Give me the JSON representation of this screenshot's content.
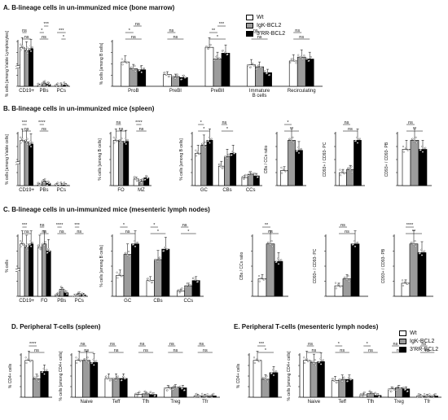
{
  "sections": {
    "A": "A. B-lineage cells in un-immunized mice (bone marrow)",
    "B": "B. B-lineage cells in un-immunized mice (spleen)",
    "C": "C. B-lineage cells in un-immunized mice (mesenteric lymph nodes)",
    "D": "D. Peripheral T-cells (spleen)",
    "E": "E. Peripheral T-cells (mesenteric lymph nodes)"
  },
  "legend_top": [
    "Wt",
    "IgK-BCL2",
    "3'RR-BCL2"
  ],
  "legend_bottom": [
    "Wt",
    "IgK-BCL2",
    "3'RR-BCL2"
  ],
  "colors": {
    "wt": "#ffffff",
    "igk": "#9c9c9c",
    "rr": "#000000",
    "stroke": "#000000"
  },
  "chart_data": [
    {
      "id": "A1",
      "type": "bar",
      "ylabel": "% cells [among Viable Lymphocytes]",
      "categories": [
        "CD19+",
        "PBs",
        "PCs"
      ],
      "broken_axis": true,
      "groups": [
        {
          "wt": 60,
          "igk": 55,
          "rr": 58
        },
        {
          "wt": 1,
          "igk": 5,
          "rr": 3
        },
        {
          "wt": 0.5,
          "igk": 1,
          "rr": 2
        }
      ],
      "annotations": [
        {
          "text": "ns",
          "from": 0,
          "to": 2,
          "over": 0,
          "level": 0
        },
        {
          "text": "ns",
          "from": 0,
          "to": 1,
          "over": 0,
          "level": 1
        },
        {
          "text": "ns",
          "from": 0,
          "to": 2,
          "over": 1,
          "level": 0
        },
        {
          "text": "*",
          "from": 0,
          "to": 1,
          "over": 1,
          "level": 1
        },
        {
          "text": "***",
          "from": 1,
          "to": 2,
          "over": 1,
          "level": 2
        },
        {
          "text": "*",
          "from": 1,
          "to": 2,
          "over": 2,
          "level": 0
        },
        {
          "text": "***",
          "from": 0,
          "to": 2,
          "over": 2,
          "level": 1
        }
      ]
    },
    {
      "id": "A2",
      "type": "bar",
      "ylabel": "% cells [among B cells]",
      "categories": [
        "ProB",
        "PreBI",
        "PreBII",
        "Immature B cells",
        "Recirculating"
      ],
      "groups": [
        {
          "wt": 25,
          "igk": 18,
          "rr": 17
        },
        {
          "wt": 12,
          "igk": 10,
          "rr": 9
        },
        {
          "wt": 40,
          "igk": 28,
          "rr": 34
        },
        {
          "wt": 22,
          "igk": 20,
          "rr": 14
        },
        {
          "wt": 26,
          "igk": 30,
          "rr": 28
        }
      ],
      "annotations": [
        {
          "text": "ns",
          "from": 0,
          "to": 2,
          "over": 0,
          "level": 0
        },
        {
          "text": "*",
          "from": 0,
          "to": 1,
          "over": 0,
          "level": 1
        },
        {
          "text": "ns",
          "from": 1,
          "to": 2,
          "over": 0,
          "level": 2
        },
        {
          "text": "ns",
          "from": 0,
          "to": 2,
          "over": 1,
          "level": 0
        },
        {
          "text": "ns",
          "from": 0,
          "to": 1,
          "over": 1,
          "level": 1
        },
        {
          "text": "*",
          "from": 0,
          "to": 2,
          "over": 2,
          "level": 0
        },
        {
          "text": "**",
          "from": 0,
          "to": 1,
          "over": 2,
          "level": 1
        },
        {
          "text": "***",
          "from": 1,
          "to": 2,
          "over": 2,
          "level": 2
        },
        {
          "text": "ns",
          "from": 0,
          "to": 2,
          "over": 3,
          "level": 0
        },
        {
          "text": "ns",
          "from": 0,
          "to": 1,
          "over": 3,
          "level": 1
        },
        {
          "text": "ns",
          "from": 0,
          "to": 2,
          "over": 4,
          "level": 0
        },
        {
          "text": "ns",
          "from": 0,
          "to": 1,
          "over": 4,
          "level": 1
        }
      ]
    },
    {
      "id": "B1",
      "type": "bar",
      "ylabel": "% cells [among Viable cells]",
      "categories": [
        "CD19+",
        "PBs",
        "PCs"
      ],
      "broken_axis": true,
      "groups": [
        {
          "wt": 60,
          "igk": 58,
          "rr": 55
        },
        {
          "wt": 1,
          "igk": 6,
          "rr": 3
        },
        {
          "wt": 0.5,
          "igk": 0.8,
          "rr": 0.6
        }
      ],
      "annotations": [
        {
          "text": "ns",
          "from": 0,
          "to": 2,
          "over": 0,
          "level": 0
        },
        {
          "text": "***",
          "from": 0,
          "to": 1,
          "over": 0,
          "level": 1
        },
        {
          "text": "ns",
          "from": 0,
          "to": 2,
          "over": 1,
          "level": 0
        },
        {
          "text": "****",
          "from": 0,
          "to": 1,
          "over": 1,
          "level": 1
        }
      ]
    },
    {
      "id": "B2",
      "type": "bar",
      "ylabel": "% cells [among B cells]",
      "categories": [
        "FO",
        "MZ"
      ],
      "groups": [
        {
          "wt": 82,
          "igk": 80,
          "rr": 80
        },
        {
          "wt": 12,
          "igk": 8,
          "rr": 14
        }
      ],
      "annotations": [
        {
          "text": "ns",
          "from": 0,
          "to": 2,
          "over": 0,
          "level": 0
        },
        {
          "text": "ns",
          "from": 0,
          "to": 1,
          "over": 0,
          "level": 1
        },
        {
          "text": "ns",
          "from": 0,
          "to": 2,
          "over": 1,
          "level": 0
        },
        {
          "text": "****",
          "from": 0,
          "to": 1,
          "over": 1,
          "level": 1
        }
      ]
    },
    {
      "id": "B3",
      "type": "bar",
      "ylabel": "% cells [among B cells]",
      "categories": [
        "GC",
        "CBs",
        "CCs"
      ],
      "groups": [
        {
          "wt": 2,
          "igk": 2.5,
          "rr": 2.8
        },
        {
          "wt": 1.2,
          "igk": 1.8,
          "rr": 2.0
        },
        {
          "wt": 0.5,
          "igk": 0.7,
          "rr": 0.6
        }
      ],
      "annotations": [
        {
          "text": "*",
          "from": 0,
          "to": 2,
          "over": 0,
          "level": 0
        },
        {
          "text": "*",
          "from": 0,
          "to": 1,
          "over": 0,
          "level": 1
        },
        {
          "text": "*",
          "from": 0,
          "to": 2,
          "over": 1,
          "level": 0
        },
        {
          "text": "ns",
          "from": 0,
          "to": 1,
          "over": 1,
          "level": 1
        }
      ]
    },
    {
      "id": "B4",
      "type": "bar",
      "ylabel": "CBs / CCs ratio",
      "categories": [
        ""
      ],
      "groups": [
        {
          "wt": 1.5,
          "igk": 4.5,
          "rr": 3.5
        }
      ],
      "annotations": [
        {
          "text": "**",
          "from": 0,
          "to": 2,
          "over": 0,
          "level": 0
        },
        {
          "text": "*",
          "from": 0,
          "to": 1,
          "over": 0,
          "level": 1
        }
      ]
    },
    {
      "id": "B5",
      "type": "bar",
      "ylabel": "CD93+ / CD93- PC",
      "categories": [
        ""
      ],
      "groups": [
        {
          "wt": 0.4,
          "igk": 0.5,
          "rr": 1.4
        }
      ],
      "annotations": [
        {
          "text": "ns",
          "from": 0,
          "to": 2,
          "over": 0,
          "level": 0
        },
        {
          "text": "ns",
          "from": 0,
          "to": 1,
          "over": 0,
          "level": 1
        }
      ]
    },
    {
      "id": "B6",
      "type": "bar",
      "ylabel": "CD93+ / CD93- PB",
      "categories": [
        ""
      ],
      "groups": [
        {
          "wt": 0.8,
          "igk": 1.0,
          "rr": 0.8
        }
      ],
      "annotations": [
        {
          "text": "**",
          "from": 0,
          "to": 2,
          "over": 0,
          "level": 0
        },
        {
          "text": "ns",
          "from": 0,
          "to": 1,
          "over": 0,
          "level": 1
        }
      ]
    },
    {
      "id": "C1",
      "type": "bar",
      "ylabel": "% cells",
      "categories": [
        "CD19+",
        "FO",
        "PBs",
        "PCs"
      ],
      "broken_axis": true,
      "groups": [
        {
          "wt": 30,
          "igk": 28,
          "rr": 30
        },
        {
          "wt": 28,
          "igk": 30,
          "rr": 26
        },
        {
          "wt": 0.5,
          "igk": 4,
          "rr": 2
        },
        {
          "wt": 0.2,
          "igk": 1.5,
          "rr": 0.8
        }
      ],
      "annotations": [
        {
          "text": "ns",
          "from": 0,
          "to": 2,
          "over": 0,
          "level": 0
        },
        {
          "text": "***",
          "from": 0,
          "to": 1,
          "over": 0,
          "level": 1
        },
        {
          "text": "ns",
          "from": 0,
          "to": 2,
          "over": 1,
          "level": 0
        },
        {
          "text": "ns",
          "from": 0,
          "to": 1,
          "over": 1,
          "level": 1
        },
        {
          "text": "ns",
          "from": 0,
          "to": 2,
          "over": 2,
          "level": 0
        },
        {
          "text": "****",
          "from": 0,
          "to": 1,
          "over": 2,
          "level": 1
        },
        {
          "text": "ns",
          "from": 0,
          "to": 2,
          "over": 3,
          "level": 0
        },
        {
          "text": "***",
          "from": 0,
          "to": 1,
          "over": 3,
          "level": 1
        }
      ]
    },
    {
      "id": "C2",
      "type": "bar",
      "ylabel": "% cells [among B cells]",
      "categories": [
        "GC",
        "CBs",
        "CCs"
      ],
      "groups": [
        {
          "wt": 4,
          "igk": 8,
          "rr": 10
        },
        {
          "wt": 3,
          "igk": 7,
          "rr": 9
        },
        {
          "wt": 1,
          "igk": 2,
          "rr": 3
        }
      ],
      "annotations": [
        {
          "text": "ns",
          "from": 0,
          "to": 2,
          "over": 0,
          "level": 0
        },
        {
          "text": "*",
          "from": 0,
          "to": 1,
          "over": 0,
          "level": 1
        },
        {
          "text": "*",
          "from": 0,
          "to": 2,
          "over": 1,
          "level": 0
        },
        {
          "text": "*",
          "from": 0,
          "to": 1,
          "over": 1,
          "level": 1
        },
        {
          "text": "*",
          "from": 0,
          "to": 2,
          "over": 2,
          "level": 0
        },
        {
          "text": "ns",
          "from": 0,
          "to": 1,
          "over": 2,
          "level": 1
        }
      ]
    },
    {
      "id": "C3",
      "type": "bar",
      "ylabel": "CBs / CCs ratio",
      "categories": [
        ""
      ],
      "groups": [
        {
          "wt": 1.0,
          "igk": 3.0,
          "rr": 2.0
        }
      ],
      "annotations": [
        {
          "text": "ns",
          "from": 0,
          "to": 2,
          "over": 0,
          "level": 0
        },
        {
          "text": "**",
          "from": 0,
          "to": 1,
          "over": 0,
          "level": 1
        }
      ]
    },
    {
      "id": "C4",
      "type": "bar",
      "ylabel": "CD93+ / CD93- PC",
      "categories": [
        ""
      ],
      "groups": [
        {
          "wt": 0.3,
          "igk": 0.5,
          "rr": 1.5
        }
      ],
      "annotations": [
        {
          "text": "ns",
          "from": 0,
          "to": 2,
          "over": 0,
          "level": 0
        },
        {
          "text": "ns",
          "from": 0,
          "to": 1,
          "over": 0,
          "level": 1
        }
      ]
    },
    {
      "id": "C5",
      "type": "bar",
      "ylabel": "CD93+ / CD93- PB",
      "categories": [
        ""
      ],
      "groups": [
        {
          "wt": 0.3,
          "igk": 1.2,
          "rr": 1.0
        }
      ],
      "annotations": [
        {
          "text": "**",
          "from": 0,
          "to": 2,
          "over": 0,
          "level": 0
        },
        {
          "text": "****",
          "from": 0,
          "to": 1,
          "over": 0,
          "level": 1
        }
      ]
    },
    {
      "id": "D1",
      "type": "bar",
      "ylabel": "% CD4+ cells",
      "categories": [
        ""
      ],
      "groups": [
        {
          "wt": 20,
          "igk": 10,
          "rr": 14
        }
      ],
      "annotations": [
        {
          "text": "ns",
          "from": 0,
          "to": 2,
          "over": 0,
          "level": 0
        },
        {
          "text": "****",
          "from": 0,
          "to": 1,
          "over": 0,
          "level": 1
        }
      ]
    },
    {
      "id": "D2",
      "type": "bar",
      "ylabel": "% cells [among CD4+ cells]",
      "categories": [
        "Naive",
        "Teff",
        "Tfh",
        "Treg",
        "Tfr"
      ],
      "groups": [
        {
          "wt": 55,
          "igk": 55,
          "rr": 52
        },
        {
          "wt": 28,
          "igk": 28,
          "rr": 28
        },
        {
          "wt": 4,
          "igk": 5,
          "rr": 4
        },
        {
          "wt": 14,
          "igk": 15,
          "rr": 14
        },
        {
          "wt": 2,
          "igk": 2,
          "rr": 2
        }
      ],
      "annotations": [
        {
          "text": "ns",
          "from": 0,
          "to": 2,
          "over": 0,
          "level": 0
        },
        {
          "text": "ns",
          "from": 0,
          "to": 1,
          "over": 0,
          "level": 1
        },
        {
          "text": "ns",
          "from": 0,
          "to": 2,
          "over": 1,
          "level": 0
        },
        {
          "text": "ns",
          "from": 0,
          "to": 1,
          "over": 1,
          "level": 1
        },
        {
          "text": "ns",
          "from": 0,
          "to": 2,
          "over": 2,
          "level": 0
        },
        {
          "text": "ns",
          "from": 0,
          "to": 1,
          "over": 2,
          "level": 1
        },
        {
          "text": "ns",
          "from": 0,
          "to": 2,
          "over": 3,
          "level": 0
        },
        {
          "text": "ns",
          "from": 0,
          "to": 1,
          "over": 3,
          "level": 1
        },
        {
          "text": "ns",
          "from": 0,
          "to": 2,
          "over": 4,
          "level": 0
        },
        {
          "text": "ns",
          "from": 0,
          "to": 1,
          "over": 4,
          "level": 1
        }
      ]
    },
    {
      "id": "E1",
      "type": "bar",
      "ylabel": "% CD4+ cells",
      "categories": [
        ""
      ],
      "groups": [
        {
          "wt": 45,
          "igk": 22,
          "rr": 30
        }
      ],
      "annotations": [
        {
          "text": "*",
          "from": 0,
          "to": 2,
          "over": 0,
          "level": 0
        },
        {
          "text": "***",
          "from": 0,
          "to": 1,
          "over": 0,
          "level": 1
        }
      ]
    },
    {
      "id": "E2",
      "type": "bar",
      "ylabel": "% cells [among CD4+ cells]",
      "categories": [
        "Naive",
        "Teff",
        "Tfh",
        "Treg",
        "Tfr"
      ],
      "groups": [
        {
          "wt": 62,
          "igk": 58,
          "rr": 60
        },
        {
          "wt": 28,
          "igk": 30,
          "rr": 30
        },
        {
          "wt": 4,
          "igk": 6,
          "rr": 3
        },
        {
          "wt": 14,
          "igk": 16,
          "rr": 14
        },
        {
          "wt": 2,
          "igk": 2,
          "rr": 2
        }
      ],
      "annotations": [
        {
          "text": "ns",
          "from": 0,
          "to": 2,
          "over": 0,
          "level": 0
        },
        {
          "text": "ns",
          "from": 0,
          "to": 1,
          "over": 0,
          "level": 1
        },
        {
          "text": "ns",
          "from": 0,
          "to": 2,
          "over": 1,
          "level": 0
        },
        {
          "text": "*",
          "from": 0,
          "to": 1,
          "over": 1,
          "level": 1
        },
        {
          "text": "ns",
          "from": 0,
          "to": 2,
          "over": 2,
          "level": 0
        },
        {
          "text": "*",
          "from": 0,
          "to": 1,
          "over": 2,
          "level": 1
        },
        {
          "text": "ns",
          "from": 0,
          "to": 2,
          "over": 3,
          "level": 0
        },
        {
          "text": "ns",
          "from": 0,
          "to": 1,
          "over": 3,
          "level": 1
        },
        {
          "text": "ns",
          "from": 0,
          "to": 2,
          "over": 4,
          "level": 0
        },
        {
          "text": "ns",
          "from": 0,
          "to": 1,
          "over": 4,
          "level": 1
        }
      ]
    }
  ]
}
